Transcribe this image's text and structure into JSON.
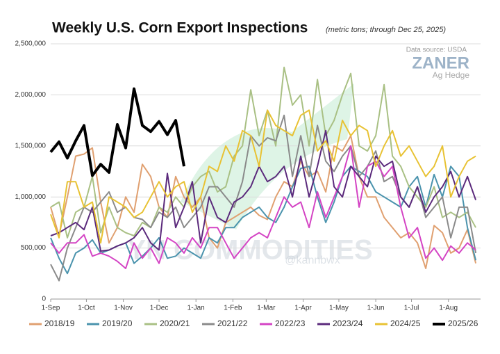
{
  "chart_data": {
    "type": "line",
    "title": "Weekly U.S. Corn Export Inspections",
    "subtitle": "(metric tons; through Dec 25, 2025)",
    "annotations": [
      "Data source: USDA",
      "ZANER",
      "Ag Hedge",
      "YN COMMODITIES",
      "@kannbwx"
    ],
    "x": [
      0,
      7,
      14,
      21,
      28,
      35,
      42,
      49,
      56,
      63,
      70,
      77,
      84,
      91,
      98,
      105,
      112,
      119,
      126,
      133,
      140,
      147,
      154,
      161,
      168,
      175,
      182,
      189,
      196,
      203,
      210,
      217,
      224,
      231,
      238,
      245,
      252,
      259,
      266,
      273,
      280,
      287,
      294,
      301,
      308,
      315,
      322,
      329,
      336,
      343,
      350,
      357
    ],
    "xlim": [
      0,
      361
    ],
    "xticks": [
      {
        "value": 0,
        "label": "1-Sep"
      },
      {
        "value": 30,
        "label": "1-Oct"
      },
      {
        "value": 61,
        "label": "1-Nov"
      },
      {
        "value": 91,
        "label": "1-Dec"
      },
      {
        "value": 122,
        "label": "1-Jan"
      },
      {
        "value": 153,
        "label": "1-Feb"
      },
      {
        "value": 181,
        "label": "1-Mar"
      },
      {
        "value": 212,
        "label": "1-Apr"
      },
      {
        "value": 242,
        "label": "1-May"
      },
      {
        "value": 273,
        "label": "1-Jun"
      },
      {
        "value": 303,
        "label": "1-Jul"
      },
      {
        "value": 334,
        "label": "1-Aug"
      }
    ],
    "ylim": [
      0,
      2500000
    ],
    "yticks": [
      0,
      {
        "value": 500000,
        "label": "500,000"
      },
      {
        "value": 1000000,
        "label": "1,000,000"
      },
      {
        "value": 1500000,
        "label": "1,500,000"
      },
      {
        "value": 2000000,
        "label": "2,000,000"
      },
      {
        "value": 2500000,
        "label": "2,500,000"
      }
    ],
    "grid": true,
    "legend": "bottom",
    "series": [
      {
        "name": "2018/19",
        "color": "#e0a070",
        "values": [
          900000,
          620000,
          1000000,
          1400000,
          1420000,
          1480000,
          950000,
          550000,
          700000,
          1000000,
          850000,
          1320000,
          1200000,
          900000,
          800000,
          1200000,
          1000000,
          900000,
          1000000,
          600000,
          500000,
          750000,
          800000,
          850000,
          900000,
          820000,
          780000,
          1000000,
          1150000,
          1100000,
          1350000,
          1200000,
          1250000,
          1050000,
          1500000,
          1450000,
          1600000,
          1200000,
          1000000,
          1000000,
          800000,
          700000,
          600000,
          650000,
          550000,
          300000,
          720000,
          650000,
          450000,
          500000,
          680000,
          350000
        ]
      },
      {
        "name": "2019/20",
        "color": "#4a93ad",
        "values": [
          600000,
          400000,
          250000,
          450000,
          500000,
          580000,
          450000,
          480000,
          520000,
          550000,
          350000,
          420000,
          500000,
          600000,
          400000,
          420000,
          500000,
          450000,
          400000,
          600000,
          550000,
          700000,
          700000,
          800000,
          850000,
          900000,
          800000,
          750000,
          900000,
          1100000,
          1280000,
          1300000,
          1000000,
          750000,
          950000,
          1200000,
          1300000,
          1250000,
          1200000,
          1050000,
          1000000,
          950000,
          900000,
          1100000,
          1200000,
          900000,
          1220000,
          1000000,
          1300000,
          1200000,
          700000,
          380000
        ]
      },
      {
        "name": "2020/21",
        "color": "#a9c084",
        "values": [
          900000,
          950000,
          600000,
          850000,
          900000,
          1200000,
          650000,
          900000,
          700000,
          650000,
          620000,
          750000,
          700000,
          900000,
          850000,
          1000000,
          900000,
          1100000,
          1200000,
          1250000,
          1050000,
          1100000,
          1400000,
          1500000,
          2050000,
          1600000,
          1850000,
          1500000,
          2270000,
          1900000,
          2000000,
          1500000,
          2150000,
          1600000,
          1750000,
          2000000,
          2210000,
          1500000,
          1450000,
          1600000,
          2100000,
          1400000,
          1300000,
          1100000,
          1000000,
          900000,
          1100000,
          800000,
          850000,
          800000,
          850000,
          700000
        ]
      },
      {
        "name": "2021/22",
        "color": "#8a8a8a",
        "values": [
          340000,
          180000,
          500000,
          700000,
          900000,
          850000,
          950000,
          1050000,
          850000,
          900000,
          800000,
          780000,
          700000,
          850000,
          800000,
          900000,
          700000,
          800000,
          900000,
          1100000,
          1100000,
          1000000,
          900000,
          1150000,
          1600000,
          1500000,
          1580000,
          1550000,
          1800000,
          1200000,
          1600000,
          1200000,
          1700000,
          1350000,
          1250000,
          1400000,
          1500000,
          1200000,
          1300000,
          1450000,
          1150000,
          1200000,
          1000000,
          900000,
          1100000,
          800000,
          900000,
          1000000,
          600000,
          900000,
          900000,
          450000
        ]
      },
      {
        "name": "2022/23",
        "color": "#d444c4",
        "values": [
          550000,
          450000,
          550000,
          550000,
          630000,
          420000,
          450000,
          420000,
          370000,
          300000,
          550000,
          400000,
          500000,
          350000,
          600000,
          550000,
          450000,
          600000,
          500000,
          700000,
          700000,
          550000,
          400000,
          500000,
          600000,
          650000,
          600000,
          800000,
          1000000,
          900000,
          950000,
          700000,
          1050000,
          800000,
          1000000,
          1200000,
          1500000,
          900000,
          1300000,
          1350000,
          1200000,
          1300000,
          900000,
          600000,
          700000,
          400000,
          500000,
          380000,
          520000,
          450000,
          550000,
          480000
        ]
      },
      {
        "name": "2023/24",
        "color": "#5b2a7c",
        "values": [
          620000,
          650000,
          700000,
          750000,
          680000,
          900000,
          470000,
          480000,
          520000,
          550000,
          600000,
          700000,
          550000,
          480000,
          1230000,
          700000,
          900000,
          1150000,
          550000,
          1000000,
          800000,
          750000,
          950000,
          1000000,
          1100000,
          1300000,
          1150000,
          1200000,
          1300000,
          1000000,
          1400000,
          1000000,
          1300000,
          1650000,
          1100000,
          1000000,
          1300000,
          1200000,
          1100000,
          1400000,
          1300000,
          1350000,
          1000000,
          900000,
          1100000,
          850000,
          1000000,
          1100000,
          1250000,
          1000000,
          1200000,
          970000
        ]
      },
      {
        "name": "2024/25",
        "color": "#e8c233",
        "values": [
          830000,
          600000,
          1150000,
          1150000,
          900000,
          950000,
          550000,
          1000000,
          950000,
          900000,
          800000,
          850000,
          1000000,
          1150000,
          1000000,
          1100000,
          1150000,
          850000,
          1000000,
          1300000,
          1250000,
          1500000,
          1350000,
          1650000,
          1600000,
          1300000,
          1850000,
          1700000,
          1650000,
          1600000,
          1800000,
          1850000,
          1450000,
          1550000,
          1350000,
          1750000,
          1600000,
          1700000,
          1650000,
          1300000,
          1500000,
          1650000,
          1400000,
          1500000,
          1350000,
          1200000,
          1300000,
          1500000,
          1000000,
          1200000,
          1350000,
          1400000
        ]
      },
      {
        "name": "2025/26",
        "color": "#000000",
        "values": [
          1440000,
          1540000,
          1380000,
          1550000,
          1700000,
          1210000,
          1320000,
          1240000,
          1710000,
          1480000,
          2060000,
          1700000,
          1640000,
          1740000,
          1610000,
          1750000,
          1300000,
          null,
          null,
          null,
          null,
          null,
          null,
          null,
          null,
          null,
          null,
          null,
          null,
          null,
          null,
          null,
          null,
          null,
          null,
          null,
          null,
          null,
          null,
          null,
          null,
          null,
          null,
          null,
          null,
          null,
          null,
          null,
          null,
          null,
          null,
          null
        ]
      }
    ]
  }
}
